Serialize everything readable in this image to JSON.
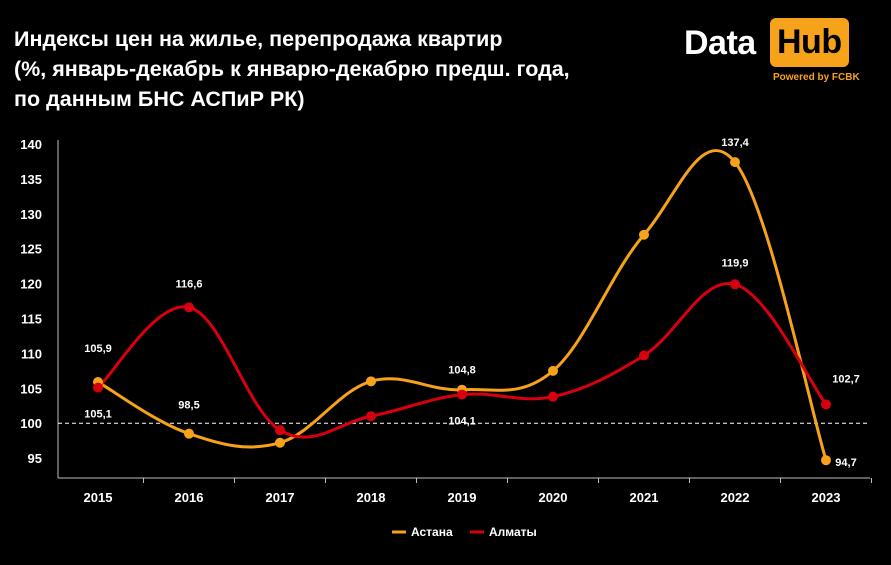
{
  "title_lines": [
    "Индексы цен на жилье, перепродажа квартир",
    "(%, январь-декабрь к январю-декабрю предш. года,",
    "по данным БНС АСПиР РК)"
  ],
  "logo": {
    "data": "Data",
    "hub": "Hub",
    "powered": "Powered by FCBK",
    "accent": "#f7a21b"
  },
  "chart_data": {
    "type": "line",
    "title": "Индексы цен на жилье, перепродажа квартир (%, январь-декабрь к январю-декабрю предш. года, по данным БНС АСПиР РК)",
    "x": [
      "2015",
      "2016",
      "2017",
      "2018",
      "2019",
      "2020",
      "2021",
      "2022",
      "2023"
    ],
    "ylim": [
      90,
      140
    ],
    "yticks": [
      95,
      100,
      105,
      110,
      115,
      120,
      125,
      130,
      135,
      140
    ],
    "reference_line": 100,
    "grid": false,
    "legend": "bottom-center",
    "series": [
      {
        "name": "Астана",
        "color": "#f7a21b",
        "values": [
          105.9,
          98.5,
          97.2,
          106.0,
          104.8,
          107.5,
          127.0,
          137.4,
          94.7
        ],
        "labels": [
          "105,9",
          "98,5",
          "",
          "",
          "104,8",
          "",
          "",
          "137,4",
          "94,7"
        ]
      },
      {
        "name": "Алматы",
        "color": "#d7000f",
        "values": [
          105.1,
          116.6,
          99.0,
          101.0,
          104.1,
          103.8,
          109.7,
          119.9,
          102.7
        ],
        "labels": [
          "105,1",
          "116,6",
          "",
          "",
          "104,1",
          "",
          "",
          "119,9",
          "102,7"
        ]
      }
    ]
  }
}
